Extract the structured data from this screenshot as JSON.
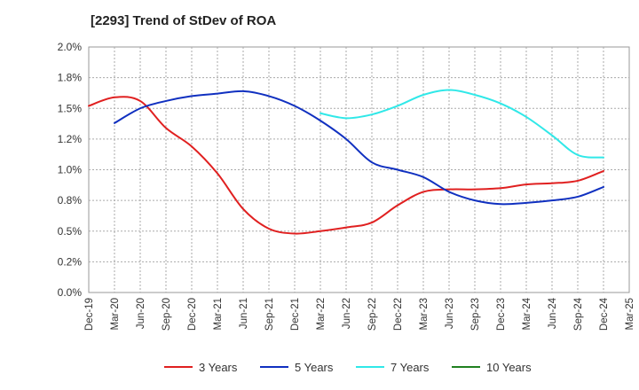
{
  "chart_data": {
    "type": "line",
    "title": "[2293]  Trend of StDev of ROA",
    "xlabel": "",
    "ylabel": "",
    "x": [
      "Dec-19",
      "Mar-20",
      "Jun-20",
      "Sep-20",
      "Dec-20",
      "Mar-21",
      "Jun-21",
      "Sep-21",
      "Dec-21",
      "Mar-22",
      "Jun-22",
      "Sep-22",
      "Dec-22",
      "Mar-23",
      "Jun-23",
      "Sep-23",
      "Dec-23",
      "Mar-24",
      "Jun-24",
      "Sep-24",
      "Dec-24",
      "Mar-25"
    ],
    "ylim": [
      0,
      2.0
    ],
    "yticks": [
      "0.0%",
      "0.2%",
      "0.5%",
      "0.8%",
      "1.0%",
      "1.2%",
      "1.5%",
      "1.8%",
      "2.0%"
    ],
    "grid": true,
    "legend_position": "bottom",
    "series": [
      {
        "name": "3 Years",
        "color": "#e02020",
        "values": [
          1.52,
          1.59,
          1.56,
          1.34,
          1.19,
          0.97,
          0.68,
          0.52,
          0.48,
          0.5,
          0.53,
          0.57,
          0.71,
          0.82,
          0.84,
          0.84,
          0.85,
          0.88,
          0.89,
          0.91,
          0.99,
          null
        ]
      },
      {
        "name": "5 Years",
        "color": "#1030c0",
        "values": [
          null,
          1.38,
          1.5,
          1.56,
          1.6,
          1.62,
          1.64,
          1.6,
          1.52,
          1.4,
          1.25,
          1.06,
          1.0,
          0.94,
          0.82,
          0.75,
          0.72,
          0.73,
          0.75,
          0.78,
          0.86,
          null
        ]
      },
      {
        "name": "7 Years",
        "color": "#30e8e8",
        "values": [
          null,
          null,
          null,
          null,
          null,
          null,
          null,
          null,
          null,
          1.46,
          1.42,
          1.45,
          1.52,
          1.61,
          1.65,
          1.61,
          1.54,
          1.43,
          1.28,
          1.12,
          1.1,
          null
        ]
      },
      {
        "name": "10 Years",
        "color": "#208020",
        "values": [
          null,
          null,
          null,
          null,
          null,
          null,
          null,
          null,
          null,
          null,
          null,
          null,
          null,
          null,
          null,
          null,
          null,
          null,
          null,
          null,
          null,
          null
        ]
      }
    ]
  }
}
